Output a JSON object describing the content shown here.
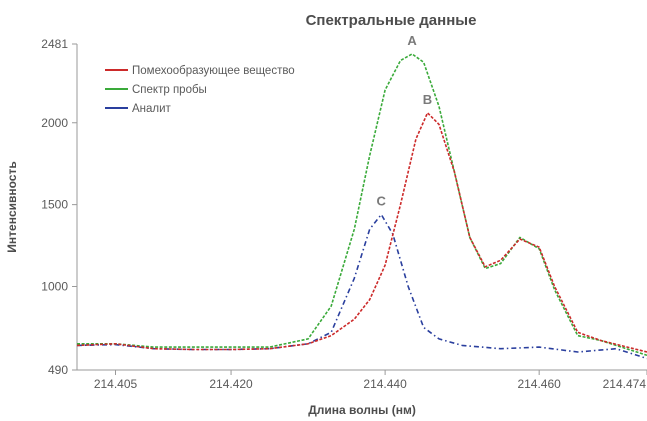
{
  "chart_data": {
    "type": "line",
    "title": "Спектральные данные",
    "xlabel": "Длина волны (нм)",
    "ylabel": "Интенсивность",
    "xlim": [
      214.4,
      214.474
    ],
    "ylim": [
      490,
      2481
    ],
    "x_ticks": [
      214.405,
      214.42,
      214.44,
      214.46,
      214.474
    ],
    "x_tick_labels": [
      "214.405",
      "214.420",
      "214.440",
      "214.460",
      "214.474"
    ],
    "y_ticks": [
      490,
      1000,
      1500,
      2000,
      2481
    ],
    "y_tick_labels": [
      "490",
      "1000",
      "1500",
      "2000",
      "2481"
    ],
    "grid": false,
    "legend_position": "top-left",
    "series": [
      {
        "name": "Помехообразующее вещество",
        "color": "#cc2a2a",
        "style": "dashed",
        "x": [
          214.4,
          214.405,
          214.41,
          214.415,
          214.42,
          214.425,
          214.43,
          214.433,
          214.436,
          214.438,
          214.44,
          214.442,
          214.444,
          214.4455,
          214.447,
          214.449,
          214.451,
          214.453,
          214.455,
          214.4575,
          214.46,
          214.462,
          214.465,
          214.468,
          214.474
        ],
        "y": [
          640,
          650,
          620,
          615,
          615,
          620,
          650,
          700,
          800,
          920,
          1130,
          1500,
          1900,
          2060,
          1990,
          1700,
          1300,
          1120,
          1160,
          1290,
          1240,
          1000,
          720,
          670,
          600
        ]
      },
      {
        "name": "Спектр пробы",
        "color": "#3aaa3a",
        "style": "dashed",
        "x": [
          214.4,
          214.405,
          214.41,
          214.415,
          214.42,
          214.425,
          214.43,
          214.433,
          214.436,
          214.438,
          214.44,
          214.442,
          214.4435,
          214.445,
          214.447,
          214.449,
          214.451,
          214.453,
          214.455,
          214.4575,
          214.46,
          214.462,
          214.465,
          214.468,
          214.474
        ],
        "y": [
          650,
          650,
          630,
          630,
          630,
          630,
          680,
          880,
          1350,
          1800,
          2200,
          2380,
          2420,
          2370,
          2100,
          1700,
          1300,
          1110,
          1140,
          1300,
          1230,
          980,
          700,
          670,
          580
        ]
      },
      {
        "name": "Аналит",
        "color": "#2a3f9e",
        "style": "dash-dot",
        "x": [
          214.4,
          214.405,
          214.41,
          214.415,
          214.42,
          214.425,
          214.43,
          214.433,
          214.436,
          214.438,
          214.4395,
          214.441,
          214.443,
          214.445,
          214.447,
          214.45,
          214.455,
          214.46,
          214.465,
          214.47,
          214.474
        ],
        "y": [
          640,
          645,
          620,
          615,
          615,
          620,
          650,
          720,
          1050,
          1350,
          1440,
          1320,
          1000,
          750,
          680,
          640,
          620,
          630,
          600,
          620,
          560
        ]
      }
    ],
    "annotations": [
      {
        "text": "A",
        "x": 214.4435,
        "y": 2420
      },
      {
        "text": "B",
        "x": 214.4455,
        "y": 2060
      },
      {
        "text": "C",
        "x": 214.4395,
        "y": 1440
      }
    ]
  }
}
